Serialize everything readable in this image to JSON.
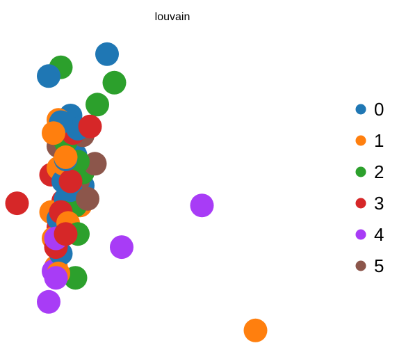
{
  "chart_data": {
    "type": "scatter",
    "title": "louvain",
    "xlabel": "",
    "ylabel": "",
    "axes_visible": false,
    "grid": false,
    "legend_position": "right",
    "xlim": [
      -0.5,
      13.5
    ],
    "ylim": [
      -1.2,
      13.4
    ],
    "series": [
      {
        "name": "0",
        "color": "#1f77b4",
        "points": [
          {
            "x": 3.9,
            "y": 12.2
          },
          {
            "x": 1.5,
            "y": 11.2
          },
          {
            "x": 2.4,
            "y": 9.4
          },
          {
            "x": 2.0,
            "y": 9.1
          },
          {
            "x": 2.7,
            "y": 8.8
          },
          {
            "x": 2.6,
            "y": 7.6
          },
          {
            "x": 2.2,
            "y": 7.4
          },
          {
            "x": 2.1,
            "y": 6.4
          },
          {
            "x": 2.9,
            "y": 6.2
          },
          {
            "x": 2.4,
            "y": 6.0
          },
          {
            "x": 2.2,
            "y": 5.6
          },
          {
            "x": 2.6,
            "y": 5.3
          },
          {
            "x": 1.9,
            "y": 4.7
          },
          {
            "x": 2.0,
            "y": 3.1
          }
        ]
      },
      {
        "name": "1",
        "color": "#ff7f0e",
        "points": [
          {
            "x": 1.9,
            "y": 9.2
          },
          {
            "x": 1.7,
            "y": 8.6
          },
          {
            "x": 2.1,
            "y": 7.2
          },
          {
            "x": 1.9,
            "y": 7.0
          },
          {
            "x": 2.2,
            "y": 7.5
          },
          {
            "x": 2.8,
            "y": 5.3
          },
          {
            "x": 1.6,
            "y": 5.0
          },
          {
            "x": 2.3,
            "y": 4.5
          },
          {
            "x": 1.7,
            "y": 3.8
          },
          {
            "x": 1.8,
            "y": 2.5
          },
          {
            "x": 1.9,
            "y": 2.2
          },
          {
            "x": 10.0,
            "y": -0.4
          }
        ]
      },
      {
        "name": "2",
        "color": "#2ca02c",
        "points": [
          {
            "x": 2.0,
            "y": 11.6
          },
          {
            "x": 4.2,
            "y": 10.9
          },
          {
            "x": 3.5,
            "y": 9.9
          },
          {
            "x": 2.2,
            "y": 8.2
          },
          {
            "x": 2.4,
            "y": 7.7
          },
          {
            "x": 2.7,
            "y": 7.3
          },
          {
            "x": 2.9,
            "y": 6.8
          },
          {
            "x": 2.0,
            "y": 6.6
          },
          {
            "x": 2.6,
            "y": 5.3
          },
          {
            "x": 2.1,
            "y": 4.4
          },
          {
            "x": 2.7,
            "y": 4.0
          },
          {
            "x": 2.6,
            "y": 2.0
          }
        ]
      },
      {
        "name": "3",
        "color": "#d62728",
        "points": [
          {
            "x": 3.2,
            "y": 8.9
          },
          {
            "x": 2.5,
            "y": 8.6
          },
          {
            "x": 1.6,
            "y": 6.7
          },
          {
            "x": 2.4,
            "y": 6.4
          },
          {
            "x": 0.2,
            "y": 5.4
          },
          {
            "x": 2.1,
            "y": 5.5
          },
          {
            "x": 2.0,
            "y": 5.0
          },
          {
            "x": 1.9,
            "y": 4.3
          },
          {
            "x": 2.2,
            "y": 4.0
          },
          {
            "x": 1.8,
            "y": 3.4
          }
        ]
      },
      {
        "name": "4",
        "color": "#a83cf6",
        "points": [
          {
            "x": 7.8,
            "y": 5.3
          },
          {
            "x": 1.8,
            "y": 3.8
          },
          {
            "x": 4.5,
            "y": 3.4
          },
          {
            "x": 1.7,
            "y": 2.3
          },
          {
            "x": 1.8,
            "y": 2.0
          },
          {
            "x": 1.5,
            "y": 0.9
          }
        ]
      },
      {
        "name": "5",
        "color": "#8c564b",
        "points": [
          {
            "x": 2.9,
            "y": 8.5
          },
          {
            "x": 1.9,
            "y": 8.0
          },
          {
            "x": 3.4,
            "y": 7.2
          },
          {
            "x": 2.7,
            "y": 6.4
          },
          {
            "x": 3.1,
            "y": 5.6
          }
        ]
      }
    ]
  },
  "legend": {
    "items": [
      {
        "label": "0",
        "color": "#1f77b4"
      },
      {
        "label": "1",
        "color": "#ff7f0e"
      },
      {
        "label": "2",
        "color": "#2ca02c"
      },
      {
        "label": "3",
        "color": "#d62728"
      },
      {
        "label": "4",
        "color": "#a83cf6"
      },
      {
        "label": "5",
        "color": "#8c564b"
      }
    ]
  }
}
